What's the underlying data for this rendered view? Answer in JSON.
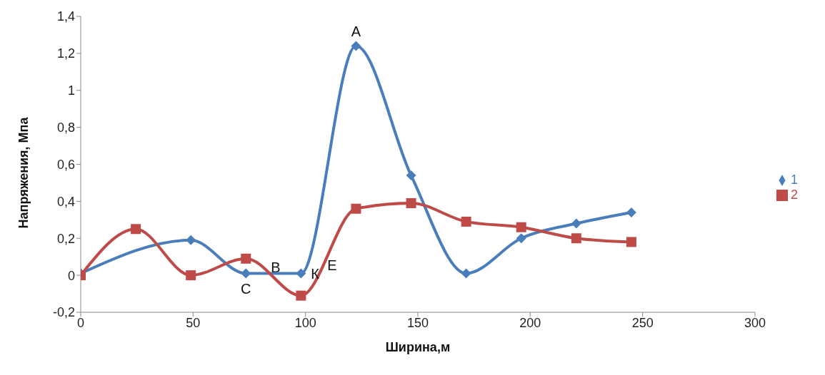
{
  "chart_data": {
    "type": "line",
    "xlabel": "Ширина,м",
    "ylabel": "Напряжения, Мпа",
    "x": [
      0,
      24.5,
      49,
      73.5,
      98,
      122.5,
      147,
      171.5,
      196,
      220.5,
      245
    ],
    "series": [
      {
        "name": "1",
        "color": "#4a7ebb",
        "marker": "diamond",
        "values": [
          0.01,
          null,
          0.19,
          0.01,
          0.01,
          1.24,
          0.54,
          0.01,
          0.2,
          0.28,
          0.34
        ]
      },
      {
        "name": "2",
        "color": "#be4b48",
        "marker": "square",
        "values": [
          0,
          0.25,
          0,
          0.09,
          -0.11,
          0.36,
          0.39,
          0.29,
          0.26,
          0.2,
          0.18
        ]
      }
    ],
    "xlim": [
      0,
      300
    ],
    "xticks": [
      0,
      50,
      100,
      150,
      200,
      250,
      300
    ],
    "ylim": [
      -0.2,
      1.4
    ],
    "yticks": [
      {
        "value": -0.2,
        "label": "-0,2"
      },
      0,
      {
        "value": 0.2,
        "label": "0,2"
      },
      {
        "value": 0.4,
        "label": "0,4"
      },
      {
        "value": 0.6,
        "label": "0,6"
      },
      {
        "value": 0.8,
        "label": "0,8"
      },
      1,
      {
        "value": 1.2,
        "label": "1,2"
      },
      {
        "value": 1.4,
        "label": "1,4"
      }
    ],
    "grid": false,
    "legend": "right",
    "line_style": "solid",
    "annotations": [
      {
        "text": "A",
        "x": 122.5,
        "y": 1.24
      },
      "B",
      {
        "text": "C",
        "x": 73.5,
        "y": 0.01
      },
      {
        "text": "К",
        "x": 98,
        "y": 0.01
      },
      "E"
    ]
  }
}
